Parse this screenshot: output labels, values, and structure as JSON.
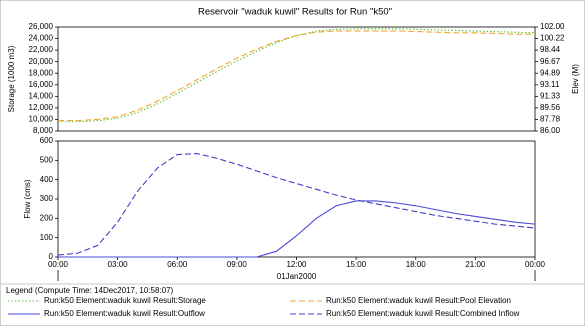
{
  "chart_data": [
    {
      "type": "line",
      "title": "Reservoir \"waduk kuwil\" Results for Run \"k50\"",
      "y_label": "Storage (1000 m3)",
      "y2_label": "Elev (M)",
      "x": [
        0,
        1,
        2,
        3,
        4,
        5,
        6,
        7,
        8,
        9,
        10,
        11,
        12,
        13,
        14,
        15,
        16,
        17,
        18,
        19,
        20,
        21,
        22,
        23,
        24
      ],
      "xlim": [
        0,
        24
      ],
      "ylim": [
        8000,
        26000
      ],
      "yticks": [
        {
          "value": 8000,
          "label": "8,000"
        },
        {
          "value": 10000,
          "label": "10,000"
        },
        {
          "value": 12000,
          "label": "12,000"
        },
        {
          "value": 14000,
          "label": "14,000"
        },
        {
          "value": 16000,
          "label": "16,000"
        },
        {
          "value": 18000,
          "label": "18,000"
        },
        {
          "value": 20000,
          "label": "20,000"
        },
        {
          "value": 22000,
          "label": "22,000"
        },
        {
          "value": 24000,
          "label": "24,000"
        },
        {
          "value": 26000,
          "label": "26,000"
        }
      ],
      "y2lim": [
        86,
        102
      ],
      "y2ticks": [
        {
          "value": 86,
          "label": "86.00"
        },
        {
          "value": 87.78,
          "label": "87.78"
        },
        {
          "value": 89.56,
          "label": "89.56"
        },
        {
          "value": 91.33,
          "label": "91.33"
        },
        {
          "value": 93.11,
          "label": "93.11"
        },
        {
          "value": 94.89,
          "label": "94.89"
        },
        {
          "value": 96.67,
          "label": "96.67"
        },
        {
          "value": 98.44,
          "label": "98.44"
        },
        {
          "value": 100.22,
          "label": "100.22"
        },
        {
          "value": 102,
          "label": "102.00"
        }
      ],
      "series": [
        {
          "name": "Run:k50 Element:waduk kuwil Result:Storage",
          "color": "#5cc43a",
          "dash": "dotted",
          "values": [
            9600,
            9600,
            9800,
            10200,
            11200,
            12700,
            14500,
            16400,
            18300,
            20100,
            21800,
            23300,
            24500,
            25300,
            25600,
            25700,
            25700,
            25700,
            25600,
            25500,
            25400,
            25300,
            25200,
            25100,
            25000
          ]
        },
        {
          "name": "Run:k50 Element:waduk kuwil Result:Pool Elevation",
          "color": "#f0a830",
          "dash": "dashed",
          "axis": "y2",
          "values": [
            87.6,
            87.6,
            87.8,
            88.2,
            89.2,
            90.6,
            92.2,
            93.9,
            95.6,
            97.2,
            98.6,
            99.8,
            100.7,
            101.2,
            101.4,
            101.4,
            101.4,
            101.4,
            101.3,
            101.2,
            101.1,
            101.1,
            101.0,
            100.9,
            100.9
          ]
        }
      ]
    },
    {
      "type": "line",
      "y_label": "Flow (cms)",
      "x": [
        0,
        1,
        2,
        3,
        4,
        5,
        6,
        7,
        8,
        9,
        10,
        11,
        12,
        13,
        14,
        15,
        16,
        17,
        18,
        19,
        20,
        21,
        22,
        23,
        24
      ],
      "xlim": [
        0,
        24
      ],
      "xticks": [
        {
          "value": 0,
          "label": "00:00"
        },
        {
          "value": 3,
          "label": "03:00"
        },
        {
          "value": 6,
          "label": "06:00"
        },
        {
          "value": 9,
          "label": "09:00"
        },
        {
          "value": 12,
          "label": "12:00"
        },
        {
          "value": 15,
          "label": "15:00"
        },
        {
          "value": 18,
          "label": "18:00"
        },
        {
          "value": 21,
          "label": "21:00"
        },
        {
          "value": 24,
          "label": "00:00"
        }
      ],
      "x_date_label": {
        "text": "01Jan2000",
        "x": 12
      },
      "ylim": [
        0,
        600
      ],
      "yticks": [
        0,
        100,
        200,
        300,
        400,
        500,
        600
      ],
      "legend_title": "Legend (Compute Time: 14Dec2017, 10:58:07)",
      "series": [
        {
          "name": "Run:k50 Element:waduk kuwil Result:Outflow",
          "color": "#4a4ad8",
          "dash": "solid",
          "values": [
            0,
            0,
            0,
            0,
            0,
            0,
            0,
            0,
            0,
            0,
            0,
            30,
            110,
            200,
            265,
            290,
            290,
            280,
            265,
            245,
            225,
            210,
            195,
            180,
            170
          ]
        },
        {
          "name": "Run:k50 Element:waduk kuwil Result:Combined Inflow",
          "color": "#3f3fc8",
          "dash": "dashed",
          "values": [
            10,
            20,
            60,
            180,
            340,
            460,
            530,
            535,
            510,
            480,
            445,
            410,
            380,
            350,
            320,
            295,
            275,
            255,
            235,
            215,
            200,
            185,
            170,
            160,
            150
          ]
        }
      ]
    }
  ]
}
